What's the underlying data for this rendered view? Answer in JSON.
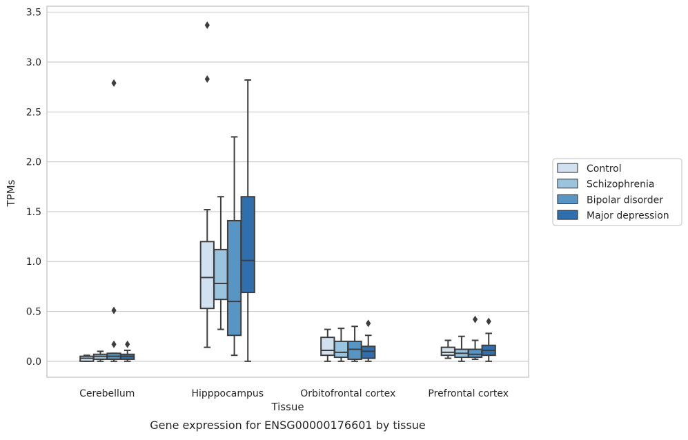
{
  "chart_data": {
    "type": "boxplot",
    "title": "Gene expression for ENSG00000176601 by tissue",
    "xlabel": "Tissue",
    "ylabel": "TPMs",
    "ylim": [
      -0.16,
      3.56
    ],
    "yticks": [
      "0.0",
      "0.5",
      "1.0",
      "1.5",
      "2.0",
      "2.5",
      "3.0",
      "3.5"
    ],
    "grid": "horizontal",
    "legend_position": "right",
    "categories": [
      "Cerebellum",
      "Hipppocampus",
      "Orbitofrontal cortex",
      "Prefrontal cortex"
    ],
    "series": [
      {
        "name": "Control",
        "color": "#d1e1f0",
        "boxes": [
          {
            "whislo": 0.0,
            "q1": 0.0,
            "med": 0.03,
            "q3": 0.05,
            "whishi": 0.06,
            "fliers": []
          },
          {
            "whislo": 0.14,
            "q1": 0.53,
            "med": 0.84,
            "q3": 1.2,
            "whishi": 1.52,
            "fliers": [
              2.83,
              3.37
            ]
          },
          {
            "whislo": 0.0,
            "q1": 0.06,
            "med": 0.11,
            "q3": 0.24,
            "whishi": 0.32,
            "fliers": []
          },
          {
            "whislo": 0.03,
            "q1": 0.06,
            "med": 0.09,
            "q3": 0.14,
            "whishi": 0.21,
            "fliers": []
          }
        ]
      },
      {
        "name": "Schizophrenia",
        "color": "#9ac3de",
        "boxes": [
          {
            "whislo": 0.0,
            "q1": 0.02,
            "med": 0.05,
            "q3": 0.07,
            "whishi": 0.1,
            "fliers": []
          },
          {
            "whislo": 0.32,
            "q1": 0.62,
            "med": 0.78,
            "q3": 1.12,
            "whishi": 1.65,
            "fliers": []
          },
          {
            "whislo": 0.0,
            "q1": 0.04,
            "med": 0.09,
            "q3": 0.2,
            "whishi": 0.33,
            "fliers": []
          },
          {
            "whislo": 0.0,
            "q1": 0.04,
            "med": 0.08,
            "q3": 0.12,
            "whishi": 0.25,
            "fliers": []
          }
        ]
      },
      {
        "name": "Bipolar disorder",
        "color": "#5796c4",
        "boxes": [
          {
            "whislo": 0.0,
            "q1": 0.02,
            "med": 0.05,
            "q3": 0.08,
            "whishi": 0.08,
            "fliers": [
              0.17,
              0.51,
              2.79
            ]
          },
          {
            "whislo": 0.06,
            "q1": 0.26,
            "med": 0.6,
            "q3": 1.41,
            "whishi": 2.25,
            "fliers": []
          },
          {
            "whislo": 0.0,
            "q1": 0.02,
            "med": 0.12,
            "q3": 0.2,
            "whishi": 0.35,
            "fliers": []
          },
          {
            "whislo": 0.02,
            "q1": 0.04,
            "med": 0.07,
            "q3": 0.12,
            "whishi": 0.21,
            "fliers": [
              0.42
            ]
          }
        ]
      },
      {
        "name": "Major depression",
        "color": "#2f6fae",
        "boxes": [
          {
            "whislo": 0.0,
            "q1": 0.02,
            "med": 0.05,
            "q3": 0.07,
            "whishi": 0.11,
            "fliers": [
              0.17
            ]
          },
          {
            "whislo": 0.0,
            "q1": 0.69,
            "med": 1.01,
            "q3": 1.65,
            "whishi": 2.82,
            "fliers": []
          },
          {
            "whislo": 0.0,
            "q1": 0.03,
            "med": 0.1,
            "q3": 0.15,
            "whishi": 0.26,
            "fliers": [
              0.38
            ]
          },
          {
            "whislo": 0.0,
            "q1": 0.06,
            "med": 0.11,
            "q3": 0.16,
            "whishi": 0.28,
            "fliers": [
              0.4
            ]
          }
        ]
      }
    ]
  }
}
